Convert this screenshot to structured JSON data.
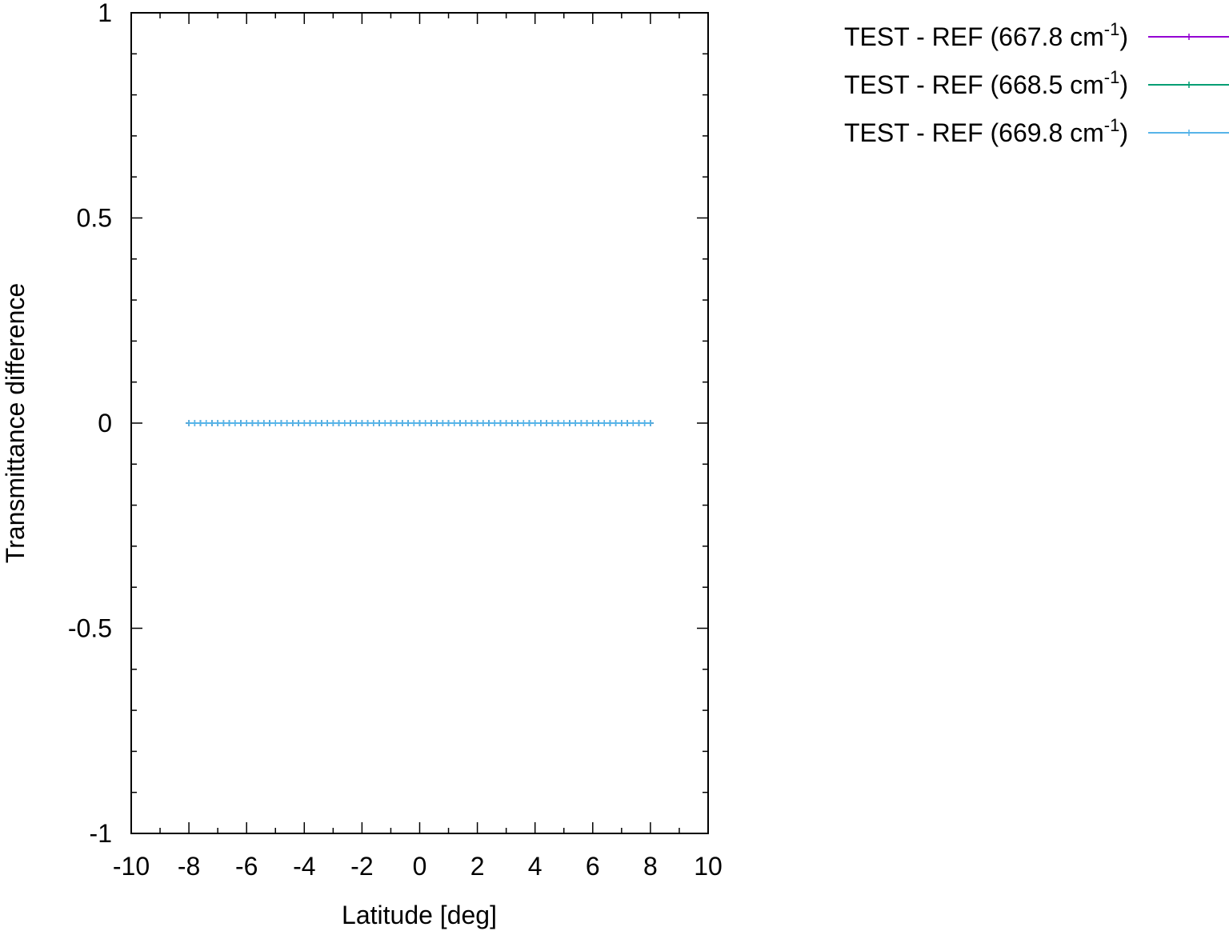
{
  "chart_data": {
    "type": "line",
    "xlabel": "Latitude [deg]",
    "ylabel": "Transmittance difference",
    "xlim": [
      -10,
      10
    ],
    "ylim": [
      -1,
      1
    ],
    "x_ticks": [
      -10,
      -8,
      -6,
      -4,
      -2,
      0,
      2,
      4,
      6,
      8,
      10
    ],
    "x_tick_labels": [
      "-10",
      "-8",
      "-6",
      "-4",
      "-2",
      "0",
      "2",
      "4",
      "6",
      "8",
      "10"
    ],
    "y_ticks": [
      -1,
      -0.5,
      0,
      0.5,
      1
    ],
    "y_tick_labels": [
      "-1",
      "-0.5",
      "0",
      "0.5",
      "1"
    ],
    "grid": false,
    "legend_position": "outside-top-right",
    "x": [
      -8.0,
      -7.8,
      -7.6,
      -7.4,
      -7.2,
      -7.0,
      -6.8,
      -6.6,
      -6.4,
      -6.2,
      -6.0,
      -5.8,
      -5.6,
      -5.4,
      -5.2,
      -5.0,
      -4.8,
      -4.6,
      -4.4,
      -4.2,
      -4.0,
      -3.8,
      -3.6,
      -3.4,
      -3.2,
      -3.0,
      -2.8,
      -2.6,
      -2.4,
      -2.2,
      -2.0,
      -1.8,
      -1.6,
      -1.4,
      -1.2,
      -1.0,
      -0.8,
      -0.6,
      -0.4,
      -0.2,
      0.0,
      0.2,
      0.4,
      0.6,
      0.8,
      1.0,
      1.2,
      1.4,
      1.6,
      1.8,
      2.0,
      2.2,
      2.4,
      2.6,
      2.8,
      3.0,
      3.2,
      3.4,
      3.6,
      3.8,
      4.0,
      4.2,
      4.4,
      4.6,
      4.8,
      5.0,
      5.2,
      5.4,
      5.6,
      5.8,
      6.0,
      6.2,
      6.4,
      6.6,
      6.8,
      7.0,
      7.2,
      7.4,
      7.6,
      7.8,
      8.0
    ],
    "series": [
      {
        "name_prefix": "TEST - REF (667.8 cm",
        "name_sup": "-1",
        "name_suffix": ")",
        "color": "#9400d3",
        "y_const": 0
      },
      {
        "name_prefix": "TEST - REF (668.5 cm",
        "name_sup": "-1",
        "name_suffix": ")",
        "color": "#009e73",
        "y_const": 0
      },
      {
        "name_prefix": "TEST - REF (669.8 cm",
        "name_sup": "-1",
        "name_suffix": ")",
        "color": "#56b4e9",
        "y_const": 0
      }
    ]
  }
}
